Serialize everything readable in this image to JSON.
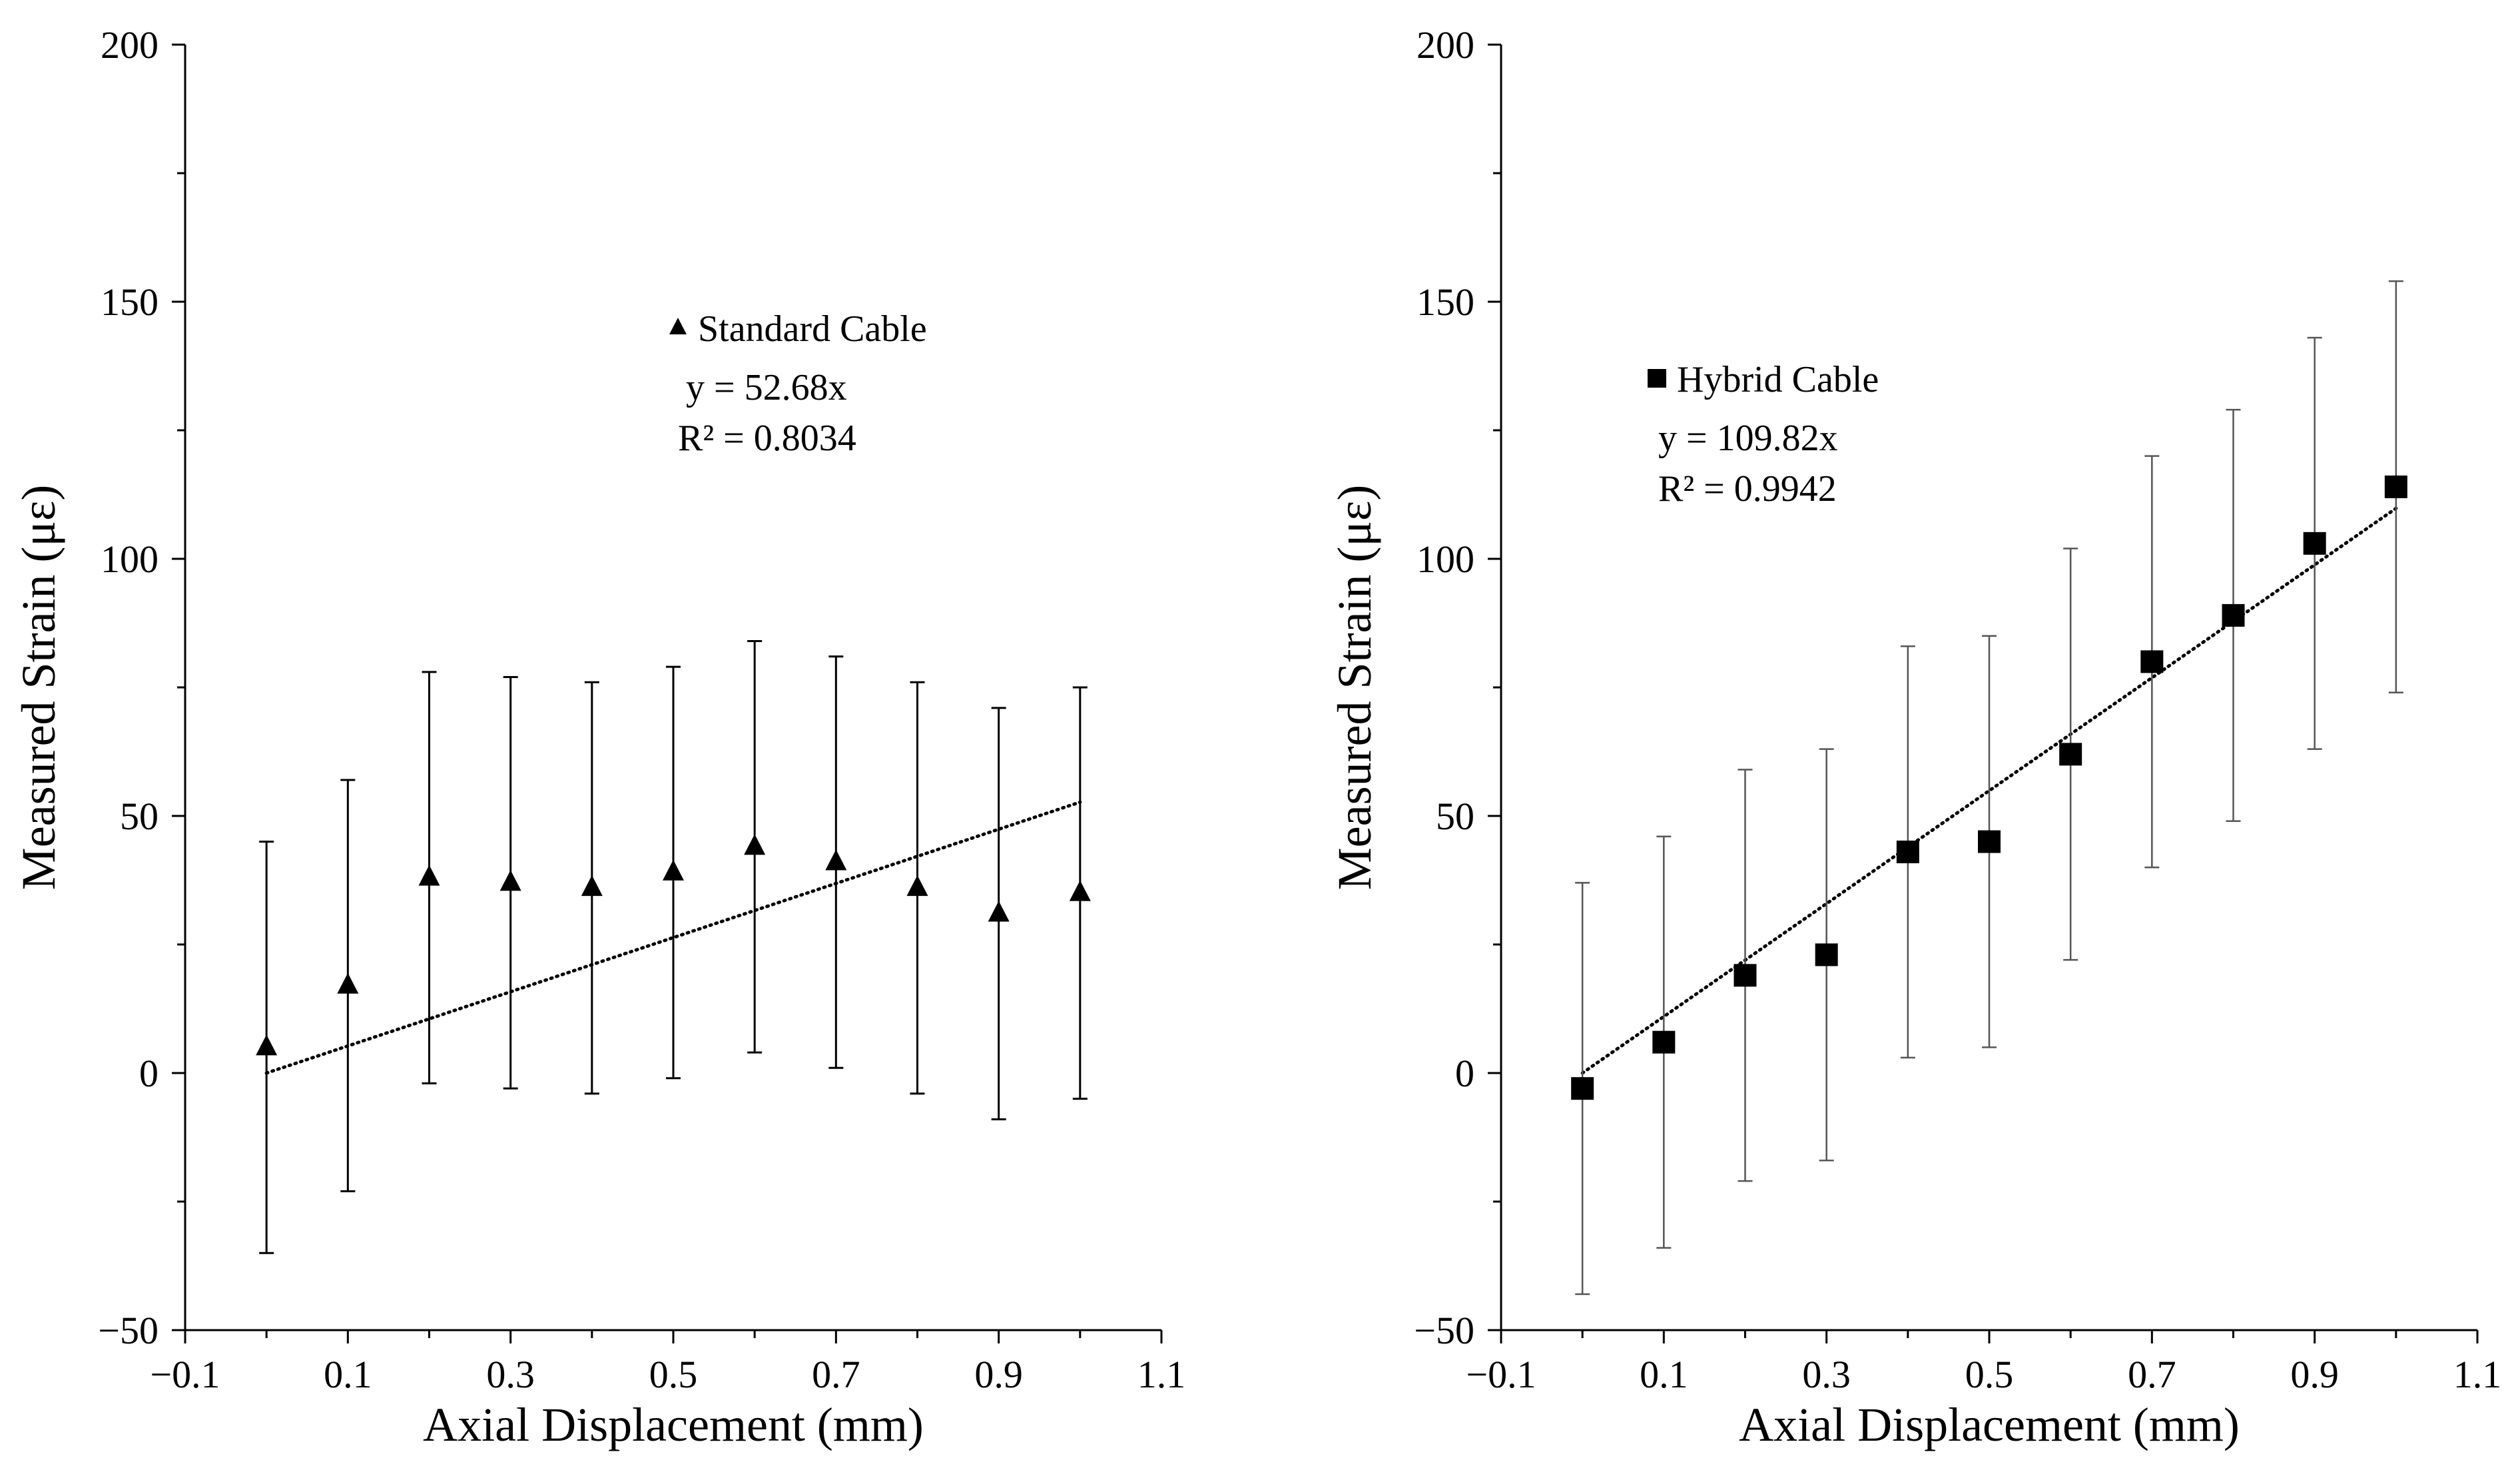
{
  "chart_data": [
    {
      "type": "scatter",
      "name": "standard",
      "xlabel": "Axial Displacement (mm)",
      "ylabel": "Measured Strain (με)",
      "xlim": [
        -0.1,
        1.1
      ],
      "ylim": [
        -50,
        200
      ],
      "xticks": [
        -0.1,
        0.1,
        0.3,
        0.5,
        0.7,
        0.9,
        1.1
      ],
      "xtick_labels": [
        "−0.1",
        "0.1",
        "0.3",
        "0.5",
        "0.7",
        "0.9",
        "1.1"
      ],
      "yticks": [
        -50,
        0,
        50,
        100,
        150,
        200
      ],
      "ytick_labels": [
        "−50",
        "0",
        "50",
        "100",
        "150",
        "200"
      ],
      "grid": false,
      "legend": "upper-center",
      "marker": "triangle",
      "series": [
        {
          "name": "Standard Cable",
          "x": [
            0,
            0.1,
            0.2,
            0.3,
            0.4,
            0.5,
            0.6,
            0.7,
            0.8,
            0.9,
            1.0
          ],
          "y": [
            5,
            17,
            38,
            37,
            36,
            39,
            44,
            41,
            36,
            31,
            35
          ],
          "err_low": [
            -35,
            -23,
            -2,
            -3,
            -4,
            -1,
            4,
            1,
            -4,
            -9,
            -5
          ],
          "err_high": [
            45,
            57,
            78,
            77,
            76,
            79,
            84,
            81,
            76,
            71,
            75
          ]
        }
      ],
      "trendline": {
        "slope": 52.68,
        "x_start": 0,
        "x_end": 1.0
      },
      "annotations": {
        "equation": "y = 52.68x",
        "r2": "R² = 0.8034"
      }
    },
    {
      "type": "scatter",
      "name": "hybrid",
      "xlabel": "Axial Displacement (mm)",
      "ylabel": "Measured Strain (με)",
      "xlim": [
        -0.1,
        1.1
      ],
      "ylim": [
        -50,
        200
      ],
      "xticks": [
        -0.1,
        0.1,
        0.3,
        0.5,
        0.7,
        0.9,
        1.1
      ],
      "xtick_labels": [
        "−0.1",
        "0.1",
        "0.3",
        "0.5",
        "0.7",
        "0.9",
        "1.1"
      ],
      "yticks": [
        -50,
        0,
        50,
        100,
        150,
        200
      ],
      "ytick_labels": [
        "−50",
        "0",
        "50",
        "100",
        "150",
        "200"
      ],
      "grid": false,
      "legend": "upper-left",
      "marker": "square",
      "series": [
        {
          "name": "Hybrid Cable",
          "x": [
            0,
            0.1,
            0.2,
            0.3,
            0.4,
            0.5,
            0.6,
            0.7,
            0.8,
            0.9,
            1.0
          ],
          "y": [
            -3,
            6,
            19,
            23,
            43,
            45,
            62,
            80,
            89,
            103,
            114
          ],
          "err_low": [
            -43,
            -34,
            -21,
            -17,
            3,
            5,
            22,
            40,
            49,
            63,
            74
          ],
          "err_high": [
            37,
            46,
            59,
            63,
            83,
            85,
            102,
            120,
            129,
            143,
            154
          ]
        }
      ],
      "trendline": {
        "slope": 109.82,
        "x_start": 0,
        "x_end": 1.0
      },
      "annotations": {
        "equation": "y = 109.82x",
        "r2": "R² = 0.9942"
      }
    }
  ]
}
